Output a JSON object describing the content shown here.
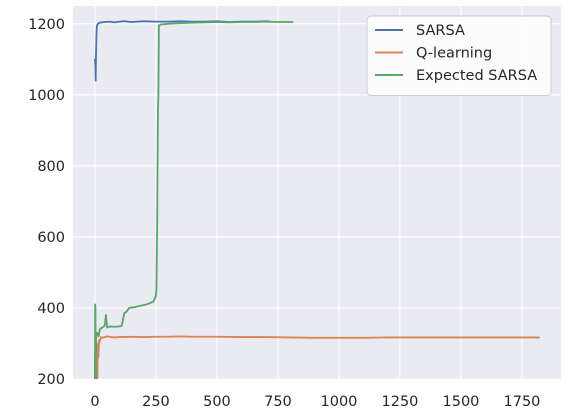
{
  "chart_data": {
    "type": "line",
    "title": "",
    "xlabel": "",
    "ylabel": "",
    "xlim": [
      -90,
      1910
    ],
    "ylim": [
      200,
      1250
    ],
    "grid": true,
    "legend_position": "top-right",
    "x_ticks": [
      0,
      250,
      500,
      750,
      1000,
      1250,
      1500,
      1750
    ],
    "x_tick_labels": [
      "0",
      "250",
      "500",
      "750",
      "1000",
      "1250",
      "1500",
      "1750"
    ],
    "y_ticks": [
      200,
      400,
      600,
      800,
      1000,
      1200
    ],
    "y_tick_labels": [
      "200",
      "400",
      "600",
      "800",
      "1000",
      "1200"
    ],
    "colors": {
      "background": "#eaeaf2",
      "grid": "#ffffff",
      "legend_bg": "#ffffff",
      "legend_border": "#cccccc"
    },
    "series": [
      {
        "name": "SARSA",
        "color": "#4c72b0",
        "points": [
          [
            0,
            1100
          ],
          [
            2,
            1080
          ],
          [
            3,
            1040
          ],
          [
            4,
            1100
          ],
          [
            6,
            1170
          ],
          [
            8,
            1195
          ],
          [
            12,
            1200
          ],
          [
            20,
            1203
          ],
          [
            40,
            1205
          ],
          [
            60,
            1206
          ],
          [
            80,
            1204
          ],
          [
            100,
            1206
          ],
          [
            120,
            1207
          ],
          [
            150,
            1205
          ],
          [
            200,
            1207
          ],
          [
            250,
            1206
          ],
          [
            300,
            1206
          ],
          [
            350,
            1207
          ],
          [
            400,
            1206
          ],
          [
            450,
            1206
          ],
          [
            500,
            1207
          ],
          [
            550,
            1205
          ],
          [
            600,
            1206
          ],
          [
            650,
            1206
          ],
          [
            700,
            1207
          ],
          [
            720,
            1206
          ]
        ]
      },
      {
        "name": "Q-learning",
        "color": "#dd8452",
        "points": [
          [
            0,
            200
          ],
          [
            1,
            280
          ],
          [
            2,
            200
          ],
          [
            4,
            250
          ],
          [
            6,
            200
          ],
          [
            8,
            270
          ],
          [
            10,
            200
          ],
          [
            12,
            300
          ],
          [
            14,
            260
          ],
          [
            17,
            310
          ],
          [
            20,
            305
          ],
          [
            25,
            318
          ],
          [
            30,
            316
          ],
          [
            50,
            320
          ],
          [
            80,
            317
          ],
          [
            100,
            318
          ],
          [
            150,
            319
          ],
          [
            200,
            318
          ],
          [
            250,
            319
          ],
          [
            300,
            319
          ],
          [
            350,
            320
          ],
          [
            400,
            319
          ],
          [
            500,
            319
          ],
          [
            600,
            318
          ],
          [
            700,
            318
          ],
          [
            800,
            317
          ],
          [
            900,
            316
          ],
          [
            1000,
            316
          ],
          [
            1100,
            316
          ],
          [
            1200,
            317
          ],
          [
            1300,
            317
          ],
          [
            1400,
            317
          ],
          [
            1500,
            317
          ],
          [
            1600,
            317
          ],
          [
            1700,
            317
          ],
          [
            1800,
            317
          ],
          [
            1820,
            317
          ]
        ]
      },
      {
        "name": "Expected SARSA",
        "color": "#55a868",
        "points": [
          [
            0,
            200
          ],
          [
            1,
            410
          ],
          [
            2,
            400
          ],
          [
            3,
            250
          ],
          [
            4,
            200
          ],
          [
            5,
            330
          ],
          [
            8,
            325
          ],
          [
            10,
            330
          ],
          [
            15,
            320
          ],
          [
            20,
            340
          ],
          [
            30,
            345
          ],
          [
            40,
            350
          ],
          [
            45,
            380
          ],
          [
            50,
            345
          ],
          [
            60,
            348
          ],
          [
            80,
            347
          ],
          [
            100,
            348
          ],
          [
            110,
            350
          ],
          [
            120,
            385
          ],
          [
            130,
            390
          ],
          [
            140,
            400
          ],
          [
            160,
            402
          ],
          [
            180,
            405
          ],
          [
            200,
            408
          ],
          [
            220,
            412
          ],
          [
            240,
            418
          ],
          [
            248,
            430
          ],
          [
            252,
            450
          ],
          [
            255,
            650
          ],
          [
            258,
            950
          ],
          [
            260,
            1000
          ],
          [
            262,
            1195
          ],
          [
            270,
            1198
          ],
          [
            300,
            1200
          ],
          [
            350,
            1202
          ],
          [
            400,
            1203
          ],
          [
            450,
            1204
          ],
          [
            500,
            1205
          ],
          [
            550,
            1204
          ],
          [
            600,
            1205
          ],
          [
            650,
            1205
          ],
          [
            700,
            1206
          ],
          [
            750,
            1205
          ],
          [
            810,
            1205
          ]
        ]
      }
    ]
  }
}
